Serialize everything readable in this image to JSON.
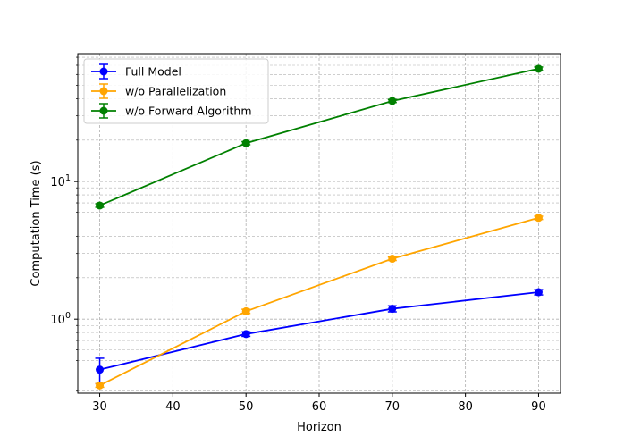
{
  "chart_data": {
    "type": "line",
    "xlabel": "Horizon",
    "ylabel": "Computation Time (s)",
    "yscale": "log",
    "xlim": [
      27,
      93
    ],
    "ylim": [
      0.29,
      85
    ],
    "x": [
      30,
      50,
      70,
      90
    ],
    "x_ticks": [
      30,
      40,
      50,
      60,
      70,
      80,
      90
    ],
    "y_ticks": [
      {
        "value": 1,
        "base": "10",
        "exp": "0"
      },
      {
        "value": 10,
        "base": "10",
        "exp": "1"
      }
    ],
    "grid": true,
    "legend_position": "top-left",
    "series": [
      {
        "name": "Full Model",
        "color": "#0000ff",
        "values": [
          0.43,
          0.78,
          1.19,
          1.57
        ],
        "errors": [
          0.09,
          0.03,
          0.06,
          0.07
        ]
      },
      {
        "name": "w/o Parallelization",
        "color": "#ffa500",
        "values": [
          0.33,
          1.14,
          2.75,
          5.45
        ],
        "errors": [
          0.01,
          0.04,
          0.08,
          0.15
        ]
      },
      {
        "name": "w/o Forward Algorithm",
        "color": "#008000",
        "values": [
          6.7,
          19.0,
          38.5,
          66.0
        ],
        "errors": [
          0.2,
          0.5,
          1.0,
          2.0
        ]
      }
    ]
  }
}
